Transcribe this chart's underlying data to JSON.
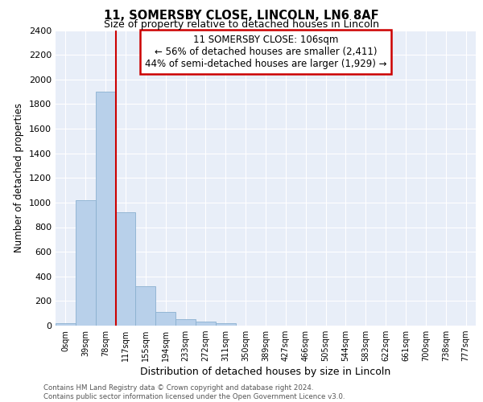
{
  "title1": "11, SOMERSBY CLOSE, LINCOLN, LN6 8AF",
  "title2": "Size of property relative to detached houses in Lincoln",
  "xlabel": "Distribution of detached houses by size in Lincoln",
  "ylabel": "Number of detached properties",
  "annotation_line1": "11 SOMERSBY CLOSE: 106sqm",
  "annotation_line2": "← 56% of detached houses are smaller (2,411)",
  "annotation_line3": "44% of semi-detached houses are larger (1,929) →",
  "bar_categories": [
    "0sqm",
    "39sqm",
    "78sqm",
    "117sqm",
    "155sqm",
    "194sqm",
    "233sqm",
    "272sqm",
    "311sqm",
    "350sqm",
    "389sqm",
    "427sqm",
    "466sqm",
    "505sqm",
    "544sqm",
    "583sqm",
    "622sqm",
    "661sqm",
    "700sqm",
    "738sqm",
    "777sqm"
  ],
  "bar_values": [
    20,
    1020,
    1900,
    920,
    320,
    110,
    55,
    30,
    20,
    0,
    0,
    0,
    0,
    0,
    0,
    0,
    0,
    0,
    0,
    0,
    0
  ],
  "bar_color": "#b8d0ea",
  "bar_edge_color": "#8ab0d0",
  "vline_color": "#cc0000",
  "annotation_box_color": "#cc0000",
  "background_color": "#e8eef8",
  "grid_color": "#ffffff",
  "ylim": [
    0,
    2400
  ],
  "yticks": [
    0,
    200,
    400,
    600,
    800,
    1000,
    1200,
    1400,
    1600,
    1800,
    2000,
    2200,
    2400
  ],
  "footer_line1": "Contains HM Land Registry data © Crown copyright and database right 2024.",
  "footer_line2": "Contains public sector information licensed under the Open Government Licence v3.0.",
  "vline_index": 3
}
